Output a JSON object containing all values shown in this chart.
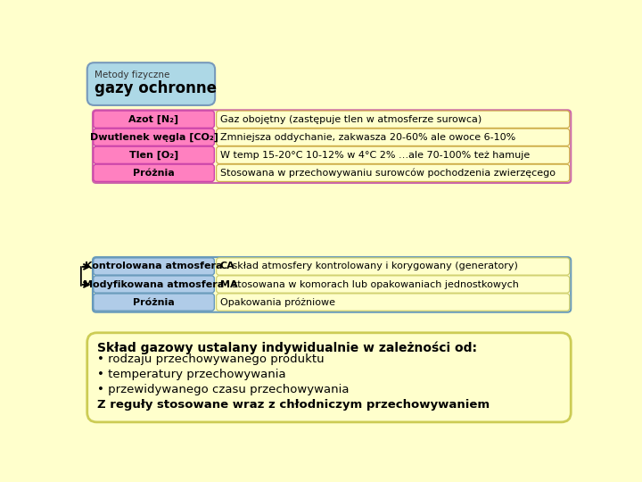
{
  "background_color": "#ffffcc",
  "title_box_color": "#add8e6",
  "title_small": "Metody fizyczne",
  "title_big": "gazy ochronne",
  "section1_rows": [
    {
      "label": "Azot [N₂]",
      "text": "Gaz obojętny (zastępuje tlen w atmosferze surowca)"
    },
    {
      "label": "Dwutlenek węgla [CO₂]",
      "text": "Zmniejsza oddychanie, zakwasza 20-60% ale owoce 6-10%"
    },
    {
      "label": "Tlen [O₂]",
      "text": "W temp 15-20°C 10-12% w 4°C 2% …ale 70-100% też hamuje"
    },
    {
      "label": "Próżnia",
      "text": "Stosowana w przechowywaniu surowców pochodzenia zwierzęcego"
    }
  ],
  "section1_label_color": "#ff80c0",
  "section2_rows": [
    {
      "label": "Kontrolowana atmosfera",
      "prefix": "CA",
      "text": " skład atmosfery kontrolowany i korygowany (generatory)"
    },
    {
      "label": "Modyfikowana atmosfera",
      "prefix": "MA",
      "text": " stosowana w komorach lub opakowaniach jednostkowych"
    },
    {
      "label": "Próżnia",
      "prefix": "",
      "text": "Opakowania próżniowe"
    }
  ],
  "section2_label_color": "#b0cce8",
  "bottom_title": "Skład gazowy ustalany indywidualnie w zależności od:",
  "bottom_lines": [
    "• rodzaju przechowywanego produktu",
    "• temperatury przechowywania",
    "• przewidywanego czasu przechowywania",
    "Z reguły stosowane wraz z chłodniczym przechowywaniem"
  ],
  "bottom_lines_bold": [
    false,
    false,
    false,
    true
  ]
}
